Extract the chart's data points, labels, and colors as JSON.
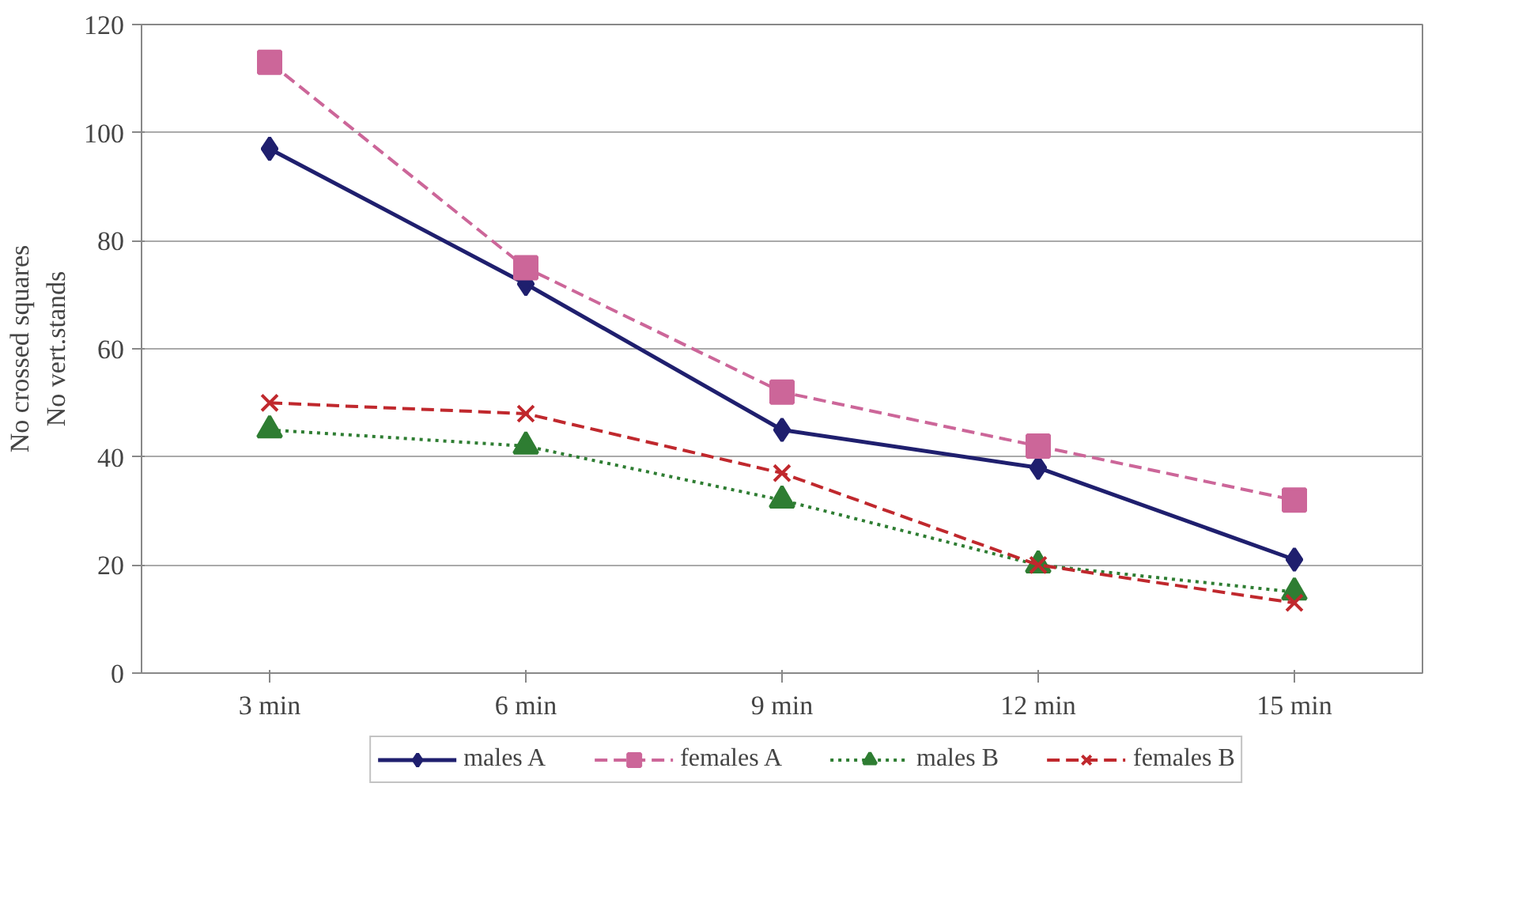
{
  "chart_data": {
    "type": "line",
    "ylabel": "No crossed squares\nNo vert.stands",
    "categories": [
      "3 min",
      "6 min",
      "9 min",
      "12 min",
      "15 min"
    ],
    "series": [
      {
        "name": "males A",
        "color": "#1f1f6e",
        "values": [
          97,
          72,
          45,
          38,
          21
        ],
        "marker": "diamond",
        "line_style": "solid"
      },
      {
        "name": "females A",
        "color": "#cc6699",
        "values": [
          113,
          75,
          52,
          42,
          32
        ],
        "marker": "square",
        "line_style": "dashed"
      },
      {
        "name": "males B",
        "color": "#2e7d32",
        "values": [
          45,
          42,
          32,
          20,
          15
        ],
        "marker": "triangle",
        "line_style": "dotted"
      },
      {
        "name": "females B",
        "color": "#c0282d",
        "values": [
          50,
          48,
          37,
          20,
          13
        ],
        "marker": "cross",
        "line_style": "dashed"
      }
    ],
    "ylim": [
      0,
      120
    ],
    "yticks": [
      0,
      20,
      40,
      60,
      80,
      100,
      120
    ],
    "grid": "y",
    "legend": "bottom"
  }
}
